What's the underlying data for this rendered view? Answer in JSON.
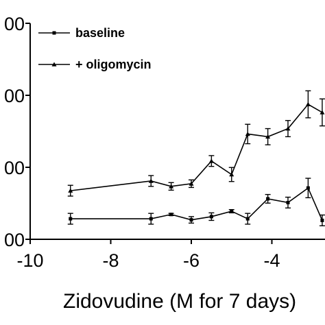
{
  "chart_data": {
    "type": "line",
    "xlabel": "Zidovudine (M for 7 days)",
    "ylabel": "",
    "xlim": [
      -10,
      -2
    ],
    "ylim": [
      0,
      4
    ],
    "x_ticks": [
      -10,
      -8,
      -6,
      -4
    ],
    "y_tick_labels": [
      "00",
      "00",
      "00",
      "00"
    ],
    "legend_placement": "top-left",
    "grid": false,
    "series": [
      {
        "name": "baseline",
        "marker": "square",
        "x": [
          -9,
          -7,
          -6.5,
          -6,
          -5.5,
          -5,
          -4.6,
          -4.1,
          -3.6,
          -3.1,
          -2.75
        ],
        "y": [
          0.38,
          0.38,
          0.46,
          0.36,
          0.42,
          0.52,
          0.38,
          0.75,
          0.68,
          0.95,
          0.35
        ],
        "err": [
          0.1,
          0.1,
          0.02,
          0.06,
          0.07,
          0.03,
          0.1,
          0.08,
          0.1,
          0.18,
          0.1
        ]
      },
      {
        "name": "+ oligomycin",
        "marker": "triangle",
        "x": [
          -9,
          -7,
          -6.5,
          -6,
          -5.5,
          -5,
          -4.6,
          -4.1,
          -3.6,
          -3.1,
          -2.75
        ],
        "y": [
          0.9,
          1.08,
          0.98,
          1.03,
          1.45,
          1.2,
          1.95,
          1.9,
          2.05,
          2.5,
          2.35
        ],
        "err": [
          0.1,
          0.1,
          0.07,
          0.07,
          0.1,
          0.13,
          0.18,
          0.15,
          0.15,
          0.25,
          0.25
        ]
      }
    ]
  }
}
